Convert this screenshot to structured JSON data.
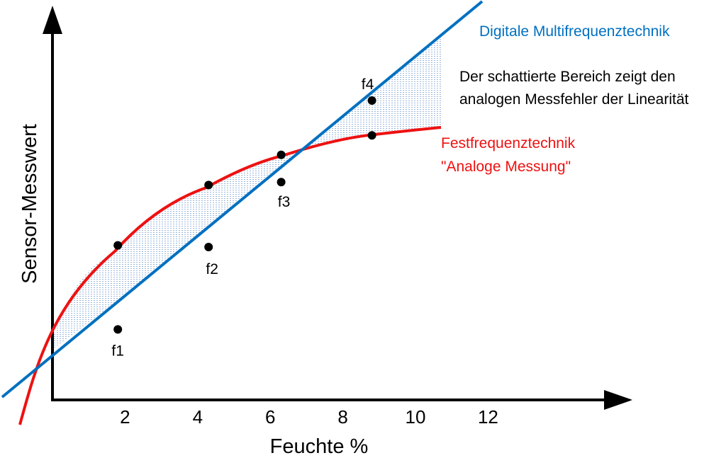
{
  "chart_data": {
    "type": "line",
    "xlabel": "Feuchte %",
    "ylabel": "Sensor-Messwert",
    "x_ticks": [
      "2",
      "4",
      "6",
      "8",
      "10",
      "12"
    ],
    "series": [
      {
        "name_line1": "Digitale Multifrequenztechnik",
        "color": "#0070c0",
        "x": [
          1.8,
          4.3,
          6.3,
          8.8
        ],
        "y": [
          1.66,
          3.6,
          5.13,
          7.05
        ]
      },
      {
        "name_line1": "Festfrequenztechnik",
        "name_line2": "\"Analoge Messung\"",
        "color": "#ee1111",
        "x": [
          1.8,
          4.3,
          6.3,
          8.8
        ],
        "y": [
          3.64,
          5.06,
          5.77,
          6.23
        ]
      }
    ],
    "point_labels": [
      "f1",
      "f2",
      "f3",
      "f4"
    ],
    "annotation": {
      "line1": "Der schattierte Bereich zeigt den",
      "line2": "analogen Messfehler der Linearität"
    }
  }
}
